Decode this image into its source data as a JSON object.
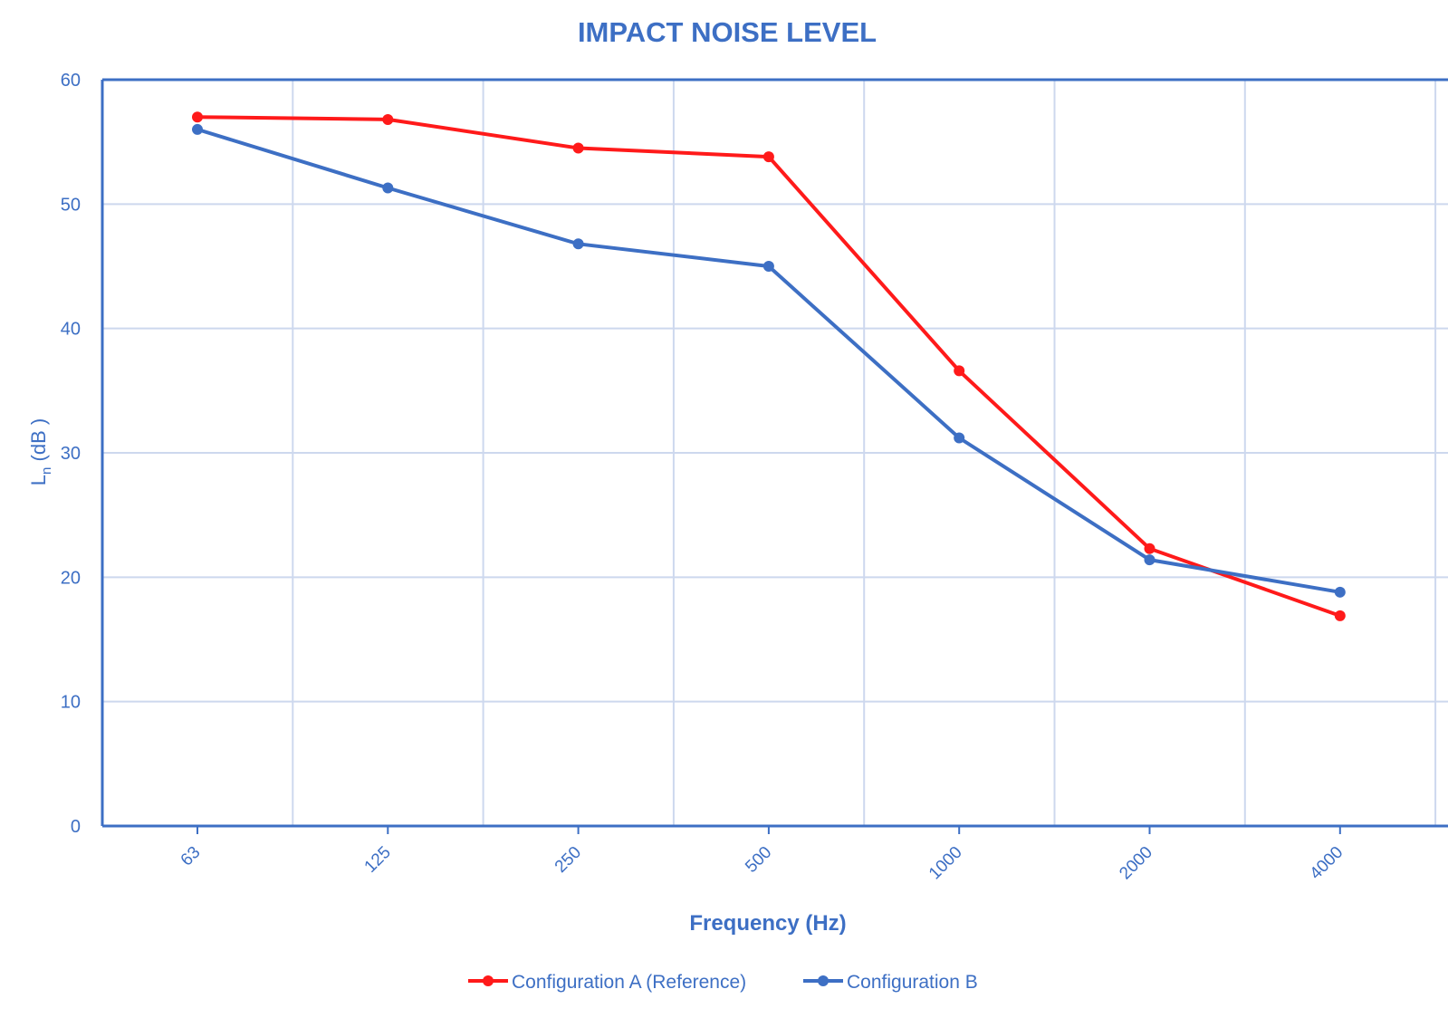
{
  "chart_data": {
    "type": "line",
    "title": "IMPACT NOISE LEVEL",
    "xlabel": "Frequency (Hz)",
    "ylabel": "L",
    "ylabel_subscript": "n",
    "ylabel_suffix": " (dB )",
    "categories": [
      "63",
      "125",
      "250",
      "500",
      "1000",
      "2000",
      "4000"
    ],
    "series": [
      {
        "name": "Configuration A (Reference)",
        "color": "#ff1a1a",
        "values": [
          57.0,
          56.8,
          54.5,
          53.8,
          36.6,
          22.3,
          16.9
        ]
      },
      {
        "name": "Configuration B",
        "color": "#3d6fc4",
        "values": [
          56.0,
          51.3,
          46.8,
          45.0,
          31.2,
          21.4,
          18.8
        ]
      }
    ],
    "ylim": [
      0,
      60
    ],
    "yticks": [
      "0",
      "10",
      "20",
      "30",
      "40",
      "50",
      "60"
    ],
    "grid": true,
    "legend_position": "bottom-center",
    "axis_color": "#3d6fc4",
    "grid_color": "#cdd8ee",
    "text_color": "#3d6fc4"
  }
}
